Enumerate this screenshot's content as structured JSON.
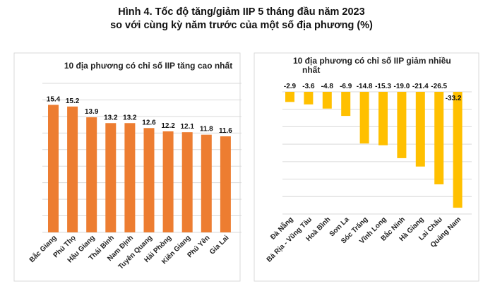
{
  "title_line1": "Hình 4. Tốc độ tăng/giảm IIP 5 tháng đầu năm 2023",
  "title_line2": "so với cùng kỳ năm trước của một số địa phương (%)",
  "chart_data": [
    {
      "type": "bar",
      "title": "10 địa phương có chỉ số IIP tăng cao nhất",
      "categories": [
        "Bắc Giang",
        "Phú Thọ",
        "Hậu Giang",
        "Thái Bình",
        "Nam Định",
        "Tuyên Quang",
        "Hải Phòng",
        "Kiên Giang",
        "Phú Yên",
        "Gia Lai"
      ],
      "values": [
        15.4,
        15.2,
        13.9,
        13.2,
        13.2,
        12.6,
        12.2,
        12.1,
        11.8,
        11.6
      ],
      "ylim": [
        0,
        18
      ],
      "grid": true,
      "color": "#ED7D31"
    },
    {
      "type": "bar",
      "title": "10 địa phương có chỉ số IIP giảm nhiều nhất",
      "categories": [
        "Đà Nẵng",
        "Bà Rịa - Vũng Tàu",
        "Hoà Bình",
        "Sơn La",
        "Sóc Trăng",
        "Vĩnh Long",
        "Bắc Ninh",
        "Hà Giang",
        "Lai Châu",
        "Quảng Nam"
      ],
      "values": [
        -2.9,
        -3.6,
        -4.8,
        -6.9,
        -14.8,
        -15.3,
        -19.0,
        -21.4,
        -26.5,
        -33.2
      ],
      "ylim": [
        -35,
        0
      ],
      "grid": true,
      "color": "#FFC000"
    }
  ]
}
